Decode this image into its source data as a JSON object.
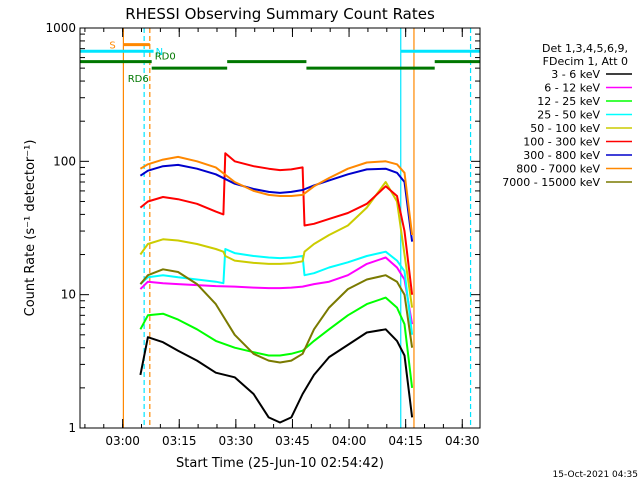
{
  "chart_data": {
    "type": "line",
    "title": "RHESSI Observing Summary Count Rates",
    "xlabel": "Start Time (25-Jun-10 02:54:42)",
    "ylabel": "Count Rate (s⁻¹ detector⁻¹)",
    "yscale": "log",
    "ylim": [
      1,
      1000
    ],
    "xlim_minutes": [
      -6,
      100
    ],
    "y_ticks": [
      1,
      10,
      100,
      1000
    ],
    "y_tick_labels": [
      "1",
      "10",
      "100",
      "1000"
    ],
    "x_ticks_minutes": [
      5.3,
      20.3,
      35.3,
      50.3,
      65.3,
      80.3,
      95.3
    ],
    "x_tick_labels": [
      "03:00",
      "03:15",
      "03:30",
      "03:45",
      "04:00",
      "04:15",
      "04:30"
    ],
    "legend_header": [
      "Det 1,3,4,5,6,9,",
      "FDecim 1, Att 0"
    ],
    "timestamp": "15-Oct-2021 04:35",
    "series": [
      {
        "name": "3 - 6 keV",
        "color": "#000000",
        "x": [
          10,
          12,
          16,
          20,
          25,
          30,
          35,
          40,
          44,
          47,
          50,
          53,
          56,
          60,
          65,
          70,
          75,
          78,
          80,
          82
        ],
        "y": [
          2.5,
          4.8,
          4.4,
          3.8,
          3.2,
          2.6,
          2.4,
          1.8,
          1.2,
          1.1,
          1.2,
          1.8,
          2.5,
          3.4,
          4.2,
          5.2,
          5.5,
          4.5,
          3.5,
          1.2
        ]
      },
      {
        "name": "6 - 12 keV",
        "color": "#ff00ff",
        "x": [
          10,
          12,
          16,
          20,
          25,
          30,
          35,
          40,
          44,
          47,
          50,
          53,
          56,
          60,
          65,
          70,
          75,
          78,
          80,
          82
        ],
        "y": [
          11,
          12.5,
          12.2,
          12,
          11.8,
          11.6,
          11.5,
          11.3,
          11.2,
          11.2,
          11.3,
          11.5,
          12,
          12.5,
          14,
          17,
          19,
          16,
          13,
          6
        ]
      },
      {
        "name": "12 - 25 keV",
        "color": "#00ff00",
        "x": [
          10,
          12,
          16,
          20,
          25,
          30,
          35,
          40,
          44,
          47,
          50,
          53,
          56,
          60,
          65,
          70,
          75,
          78,
          80,
          82
        ],
        "y": [
          5.5,
          7,
          7.2,
          6.5,
          5.5,
          4.5,
          4,
          3.7,
          3.5,
          3.5,
          3.6,
          3.8,
          4.5,
          5.5,
          7,
          8.5,
          9.5,
          8,
          6,
          2
        ]
      },
      {
        "name": "25 - 50 keV",
        "color": "#00ffff",
        "x": [
          10,
          12,
          16,
          20,
          25,
          30,
          32,
          32.5,
          35,
          40,
          44,
          47,
          50,
          53,
          53.5,
          56,
          60,
          65,
          70,
          75,
          78,
          80,
          82
        ],
        "y": [
          12,
          13.5,
          14,
          13.5,
          13,
          12.5,
          12.2,
          22,
          20.5,
          19.5,
          19,
          18.8,
          19,
          19.5,
          14,
          14.5,
          16,
          17.5,
          19.5,
          21,
          18,
          15,
          5
        ]
      },
      {
        "name": "50 - 100 keV",
        "color": "#cccc00",
        "x": [
          10,
          12,
          16,
          20,
          25,
          30,
          32,
          32.5,
          35,
          40,
          44,
          47,
          50,
          53,
          53.5,
          56,
          60,
          65,
          70,
          75,
          78,
          80,
          82
        ],
        "y": [
          20,
          24,
          26,
          25.5,
          24,
          22,
          21,
          19.5,
          18,
          17.3,
          17,
          17,
          17.2,
          17.8,
          21,
          24,
          28,
          33,
          45,
          70,
          50,
          20,
          8
        ]
      },
      {
        "name": "100 - 300 keV",
        "color": "#ff0000",
        "x": [
          10,
          12,
          16,
          20,
          25,
          30,
          32,
          32.5,
          35,
          40,
          44,
          47,
          50,
          53,
          53.5,
          56,
          60,
          65,
          70,
          75,
          78,
          80,
          82
        ],
        "y": [
          45,
          50,
          54,
          52,
          48,
          42,
          40,
          115,
          100,
          92,
          88,
          86,
          87,
          90,
          33,
          34,
          37,
          41,
          48,
          65,
          55,
          30,
          10
        ]
      },
      {
        "name": "300 - 800 keV",
        "color": "#0000cc",
        "x": [
          10,
          12,
          16,
          20,
          25,
          30,
          35,
          40,
          44,
          47,
          50,
          53,
          56,
          60,
          65,
          70,
          75,
          78,
          80,
          82
        ],
        "y": [
          78,
          85,
          92,
          94,
          88,
          80,
          68,
          62,
          59,
          58,
          59,
          61,
          66,
          72,
          80,
          87,
          88,
          82,
          70,
          25
        ]
      },
      {
        "name": "800 - 7000 keV",
        "color": "#ff8800",
        "x": [
          10,
          12,
          16,
          20,
          25,
          30,
          35,
          40,
          44,
          47,
          50,
          53,
          56,
          60,
          65,
          70,
          75,
          78,
          80,
          82
        ],
        "y": [
          88,
          95,
          103,
          108,
          100,
          90,
          70,
          60,
          56,
          55,
          55,
          56,
          65,
          75,
          88,
          98,
          100,
          95,
          82,
          28
        ]
      },
      {
        "name": "7000 - 15000 keV",
        "color": "#7a7a00",
        "x": [
          10,
          12,
          16,
          20,
          25,
          30,
          35,
          40,
          44,
          47,
          50,
          53,
          56,
          60,
          65,
          70,
          75,
          78,
          80,
          82
        ],
        "y": [
          12,
          14,
          15.5,
          14.8,
          12,
          8.5,
          5,
          3.6,
          3.2,
          3.1,
          3.2,
          3.6,
          5.5,
          8,
          11,
          13,
          14,
          12.5,
          10,
          4
        ]
      }
    ],
    "saa_flags": [
      {
        "label": "S",
        "color": "#ff8800",
        "start": 5.5,
        "end": 12.5,
        "level": 750
      }
    ],
    "night_flags": [
      {
        "label": "N",
        "color": "#00e5ff",
        "start": -6,
        "end": 13.5,
        "level": 670
      },
      {
        "label": "",
        "color": "#00e5ff",
        "start": 79,
        "end": 100,
        "level": 670
      }
    ],
    "decimation_flags": [
      {
        "label": "RD0",
        "color": "#007700",
        "start": -6,
        "end": 13,
        "level": 560
      },
      {
        "label": "RD6",
        "color": "#007700",
        "start": 13,
        "end": 33,
        "level": 500
      },
      {
        "label": "",
        "color": "#007700",
        "start": 33,
        "end": 54,
        "level": 560
      },
      {
        "label": "",
        "color": "#007700",
        "start": 54,
        "end": 88,
        "level": 500
      },
      {
        "label": "",
        "color": "#007700",
        "start": 88,
        "end": 100,
        "level": 560
      }
    ],
    "vertical_markers": [
      {
        "x": 5.5,
        "color": "#ff8800",
        "style": "solid"
      },
      {
        "x": 11.0,
        "color": "#00e5ff",
        "style": "dashed"
      },
      {
        "x": 12.5,
        "color": "#ff8800",
        "style": "dashed"
      },
      {
        "x": 79.0,
        "color": "#00e5ff",
        "style": "solid"
      },
      {
        "x": 82.5,
        "color": "#ff8800",
        "style": "solid"
      },
      {
        "x": 97.5,
        "color": "#00e5ff",
        "style": "dashed"
      }
    ]
  }
}
